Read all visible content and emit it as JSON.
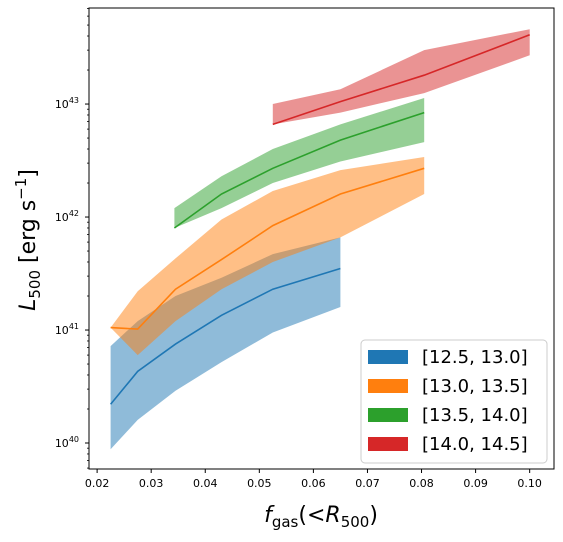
{
  "chart_data": {
    "type": "area",
    "x_label_main": "f",
    "x_label_sub": "gas",
    "x_label_rest": "(<R",
    "x_label_sub2": "500",
    "x_label_close": ")",
    "y_label_main": "L",
    "y_label_sub": "500",
    "y_label_unit": " [erg s",
    "y_label_sup": "−1",
    "y_label_close": "]",
    "xlim": [
      0.0185,
      0.1045
    ],
    "ylim_log10": [
      39.77,
      43.85
    ],
    "y_scale": "log",
    "grid": false,
    "legend_position": "lower-right",
    "x_ticks": [
      {
        "value": 0.02,
        "label": "0.02"
      },
      {
        "value": 0.03,
        "label": "0.03"
      },
      {
        "value": 0.04,
        "label": "0.04"
      },
      {
        "value": 0.05,
        "label": "0.05"
      },
      {
        "value": 0.06,
        "label": "0.06"
      },
      {
        "value": 0.07,
        "label": "0.07"
      },
      {
        "value": 0.08,
        "label": "0.08"
      },
      {
        "value": 0.09,
        "label": "0.09"
      },
      {
        "value": 0.1,
        "label": "0.10"
      }
    ],
    "y_ticks": [
      {
        "exp": 40,
        "base": "10",
        "sup": "40"
      },
      {
        "exp": 41,
        "base": "10",
        "sup": "41"
      },
      {
        "exp": 42,
        "base": "10",
        "sup": "42"
      },
      {
        "exp": 43,
        "base": "10",
        "sup": "43"
      }
    ],
    "series": [
      {
        "name": "[12.5, 13.0]",
        "color": "#1f77b4",
        "x": [
          0.0225,
          0.0275,
          0.0345,
          0.043,
          0.0525,
          0.065
        ],
        "median": [
          2.2e+40,
          4.3e+40,
          7.5e+40,
          1.35e+41,
          2.3e+41,
          3.5e+41
        ],
        "lower": [
          8.8e+39,
          1.6e+40,
          2.9e+40,
          5.2e+40,
          9.5e+40,
          1.6e+41
        ],
        "upper": [
          7.2e+40,
          1.2e+41,
          2e+41,
          2.9e+41,
          4.7e+41,
          6.6e+41
        ]
      },
      {
        "name": "[13.0, 13.5]",
        "color": "#ff7f0e",
        "x": [
          0.0225,
          0.0275,
          0.0345,
          0.043,
          0.0525,
          0.065,
          0.0805
        ],
        "median": [
          1.05e+41,
          1.02e+41,
          2.3e+41,
          4.2e+41,
          8.4e+41,
          1.6e+42,
          2.7e+42
        ],
        "lower": [
          1.05e+41,
          6e+40,
          1.2e+41,
          2.3e+41,
          4e+41,
          6.6e+41,
          1.6e+42
        ],
        "upper": [
          1.05e+41,
          2.2e+41,
          4.3e+41,
          9.5e+41,
          1.7e+42,
          2.6e+42,
          3.4e+42
        ]
      },
      {
        "name": "[13.5, 14.0]",
        "color": "#2ca02c",
        "x": [
          0.0343,
          0.043,
          0.0525,
          0.065,
          0.0805
        ],
        "median": [
          8e+41,
          1.6e+42,
          2.7e+42,
          4.8e+42,
          8.4e+42
        ],
        "lower": [
          8e+41,
          1.2e+42,
          2e+42,
          3.1e+42,
          4.6e+42
        ],
        "upper": [
          1.2e+42,
          2.3e+42,
          4e+42,
          6.6e+42,
          1.13e+43
        ]
      },
      {
        "name": "[14.0, 14.5]",
        "color": "#d62728",
        "x": [
          0.0525,
          0.065,
          0.0805,
          0.1
        ],
        "median": [
          6.6e+42,
          1.05e+43,
          1.8e+43,
          4.1e+43
        ],
        "lower": [
          6.6e+42,
          8.4e+42,
          1.25e+43,
          2.7e+43
        ],
        "upper": [
          1e+43,
          1.35e+43,
          3e+43,
          4.6e+43
        ]
      }
    ]
  }
}
